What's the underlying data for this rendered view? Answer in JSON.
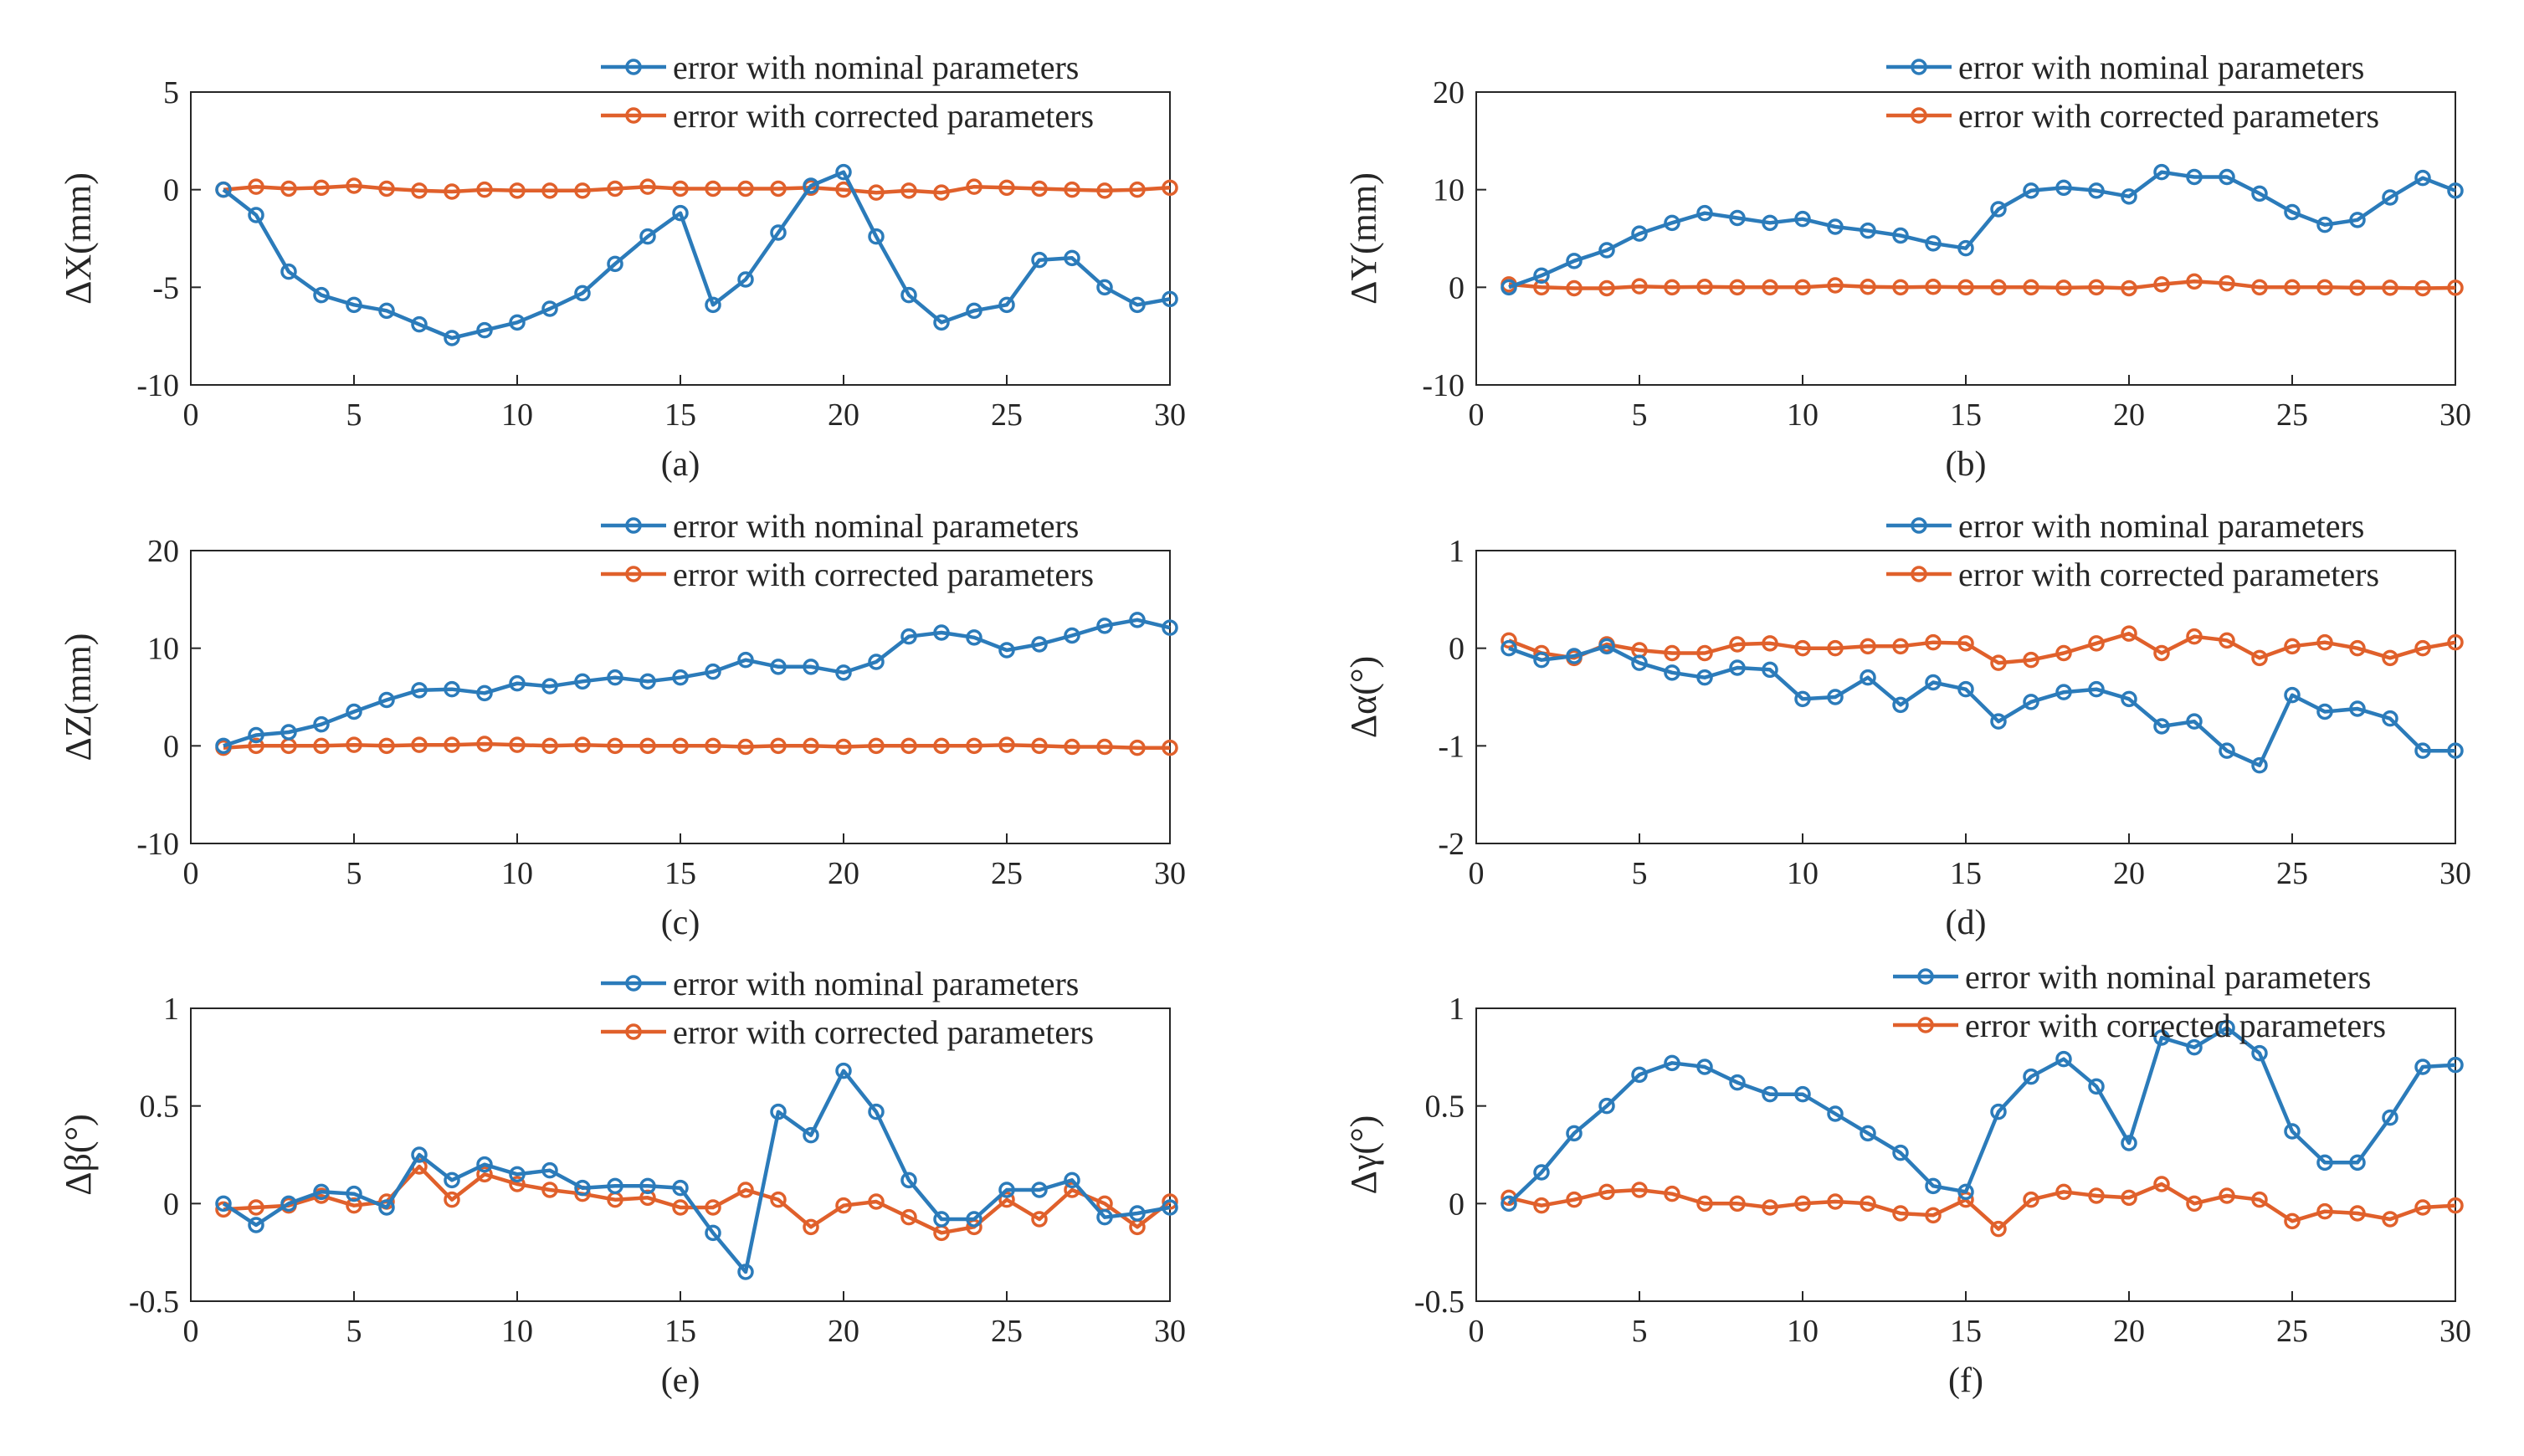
{
  "colors": {
    "nominal": "#2B7BBA",
    "corrected": "#E0602B",
    "axis": "#262626"
  },
  "chart_data": [
    {
      "type": "line",
      "panel": "(a)",
      "ylabel": "ΔX(mm)",
      "xlabel": "",
      "xlim": [
        0,
        30
      ],
      "ylim": [
        -10,
        5
      ],
      "xticks": [
        0,
        5,
        10,
        15,
        20,
        25,
        30
      ],
      "yticks": [
        -10,
        -5,
        0,
        5
      ],
      "ytick_labels": [
        "-10",
        "-5",
        "0",
        "5"
      ],
      "legend": "top-right",
      "x": [
        1,
        2,
        3,
        4,
        5,
        6,
        7,
        8,
        9,
        10,
        11,
        12,
        13,
        14,
        15,
        16,
        17,
        18,
        19,
        20,
        21,
        22,
        23,
        24,
        25,
        26,
        27,
        28,
        29,
        30
      ],
      "series": [
        {
          "name": "error with nominal parameters",
          "color": "nominal",
          "values": [
            0,
            -1.3,
            -4.2,
            -5.4,
            -5.9,
            -6.2,
            -6.9,
            -7.6,
            -7.2,
            -6.8,
            -6.1,
            -5.3,
            -3.8,
            -2.4,
            -1.2,
            -5.9,
            -4.6,
            -2.2,
            0.2,
            0.9,
            -2.4,
            -5.4,
            -6.8,
            -6.2,
            -5.9,
            -3.6,
            -3.5,
            -5.0,
            -5.9,
            -5.6
          ]
        },
        {
          "name": "error with corrected parameters",
          "color": "corrected",
          "values": [
            0,
            0.15,
            0.05,
            0.1,
            0.2,
            0.05,
            -0.05,
            -0.1,
            0.0,
            -0.05,
            -0.05,
            -0.05,
            0.05,
            0.15,
            0.05,
            0.05,
            0.05,
            0.05,
            0.1,
            0.0,
            -0.15,
            -0.05,
            -0.15,
            0.15,
            0.1,
            0.05,
            0.0,
            -0.05,
            0.0,
            0.1
          ]
        }
      ]
    },
    {
      "type": "line",
      "panel": "(b)",
      "ylabel": "ΔY(mm)",
      "xlabel": "",
      "xlim": [
        0,
        30
      ],
      "ylim": [
        -10,
        20
      ],
      "xticks": [
        0,
        5,
        10,
        15,
        20,
        25,
        30
      ],
      "yticks": [
        -10,
        0,
        10,
        20
      ],
      "ytick_labels": [
        "-10",
        "0",
        "10",
        "20"
      ],
      "legend": "top-right",
      "x": [
        1,
        2,
        3,
        4,
        5,
        6,
        7,
        8,
        9,
        10,
        11,
        12,
        13,
        14,
        15,
        16,
        17,
        18,
        19,
        20,
        21,
        22,
        23,
        24,
        25,
        26,
        27,
        28,
        29,
        30
      ],
      "series": [
        {
          "name": "error with nominal parameters",
          "color": "nominal",
          "values": [
            0,
            1.2,
            2.7,
            3.8,
            5.5,
            6.6,
            7.6,
            7.1,
            6.6,
            7.0,
            6.2,
            5.8,
            5.3,
            4.5,
            4.0,
            8.0,
            9.9,
            10.2,
            9.9,
            9.3,
            11.8,
            11.3,
            11.3,
            9.6,
            7.7,
            6.4,
            6.9,
            9.2,
            11.2,
            9.9
          ]
        },
        {
          "name": "error with corrected parameters",
          "color": "corrected",
          "values": [
            0.3,
            0.0,
            -0.1,
            -0.1,
            0.1,
            0.0,
            0.05,
            0.0,
            0.0,
            0.0,
            0.2,
            0.05,
            0.0,
            0.05,
            0.0,
            0.0,
            0.0,
            -0.05,
            0.0,
            -0.1,
            0.3,
            0.6,
            0.4,
            0.0,
            0.0,
            0.0,
            -0.05,
            -0.05,
            -0.1,
            -0.05
          ]
        }
      ]
    },
    {
      "type": "line",
      "panel": "(c)",
      "ylabel": "ΔZ(mm)",
      "xlabel": "",
      "xlim": [
        0,
        30
      ],
      "ylim": [
        -10,
        20
      ],
      "xticks": [
        0,
        5,
        10,
        15,
        20,
        25,
        30
      ],
      "yticks": [
        -10,
        0,
        10,
        20
      ],
      "ytick_labels": [
        "-10",
        "0",
        "10",
        "20"
      ],
      "legend": "top-right",
      "x": [
        1,
        2,
        3,
        4,
        5,
        6,
        7,
        8,
        9,
        10,
        11,
        12,
        13,
        14,
        15,
        16,
        17,
        18,
        19,
        20,
        21,
        22,
        23,
        24,
        25,
        26,
        27,
        28,
        29,
        30
      ],
      "series": [
        {
          "name": "error with nominal parameters",
          "color": "nominal",
          "values": [
            0,
            1.1,
            1.4,
            2.2,
            3.5,
            4.7,
            5.7,
            5.8,
            5.4,
            6.4,
            6.1,
            6.6,
            7.0,
            6.6,
            7.0,
            7.6,
            8.8,
            8.1,
            8.1,
            7.5,
            8.6,
            11.2,
            11.6,
            11.1,
            9.8,
            10.4,
            11.3,
            12.3,
            12.9,
            12.1
          ]
        },
        {
          "name": "error with corrected parameters",
          "color": "corrected",
          "values": [
            -0.2,
            0.0,
            0.0,
            0.0,
            0.1,
            0.0,
            0.1,
            0.1,
            0.2,
            0.1,
            0.0,
            0.1,
            0.0,
            0.0,
            0.0,
            0.0,
            -0.1,
            0.0,
            0.0,
            -0.1,
            0.0,
            0.0,
            0.0,
            0.0,
            0.1,
            0.0,
            -0.1,
            -0.1,
            -0.2,
            -0.2
          ]
        }
      ]
    },
    {
      "type": "line",
      "panel": "(d)",
      "ylabel": "Δα(°)",
      "xlabel": "",
      "xlim": [
        0,
        30
      ],
      "ylim": [
        -2,
        1
      ],
      "xticks": [
        0,
        5,
        10,
        15,
        20,
        25,
        30
      ],
      "yticks": [
        -2,
        -1,
        0,
        1
      ],
      "ytick_labels": [
        "-2",
        "-1",
        "0",
        "1"
      ],
      "legend": "top-right",
      "x": [
        1,
        2,
        3,
        4,
        5,
        6,
        7,
        8,
        9,
        10,
        11,
        12,
        13,
        14,
        15,
        16,
        17,
        18,
        19,
        20,
        21,
        22,
        23,
        24,
        25,
        26,
        27,
        28,
        29,
        30
      ],
      "series": [
        {
          "name": "error with nominal parameters",
          "color": "nominal",
          "values": [
            0,
            -0.12,
            -0.08,
            0.02,
            -0.15,
            -0.25,
            -0.3,
            -0.2,
            -0.22,
            -0.52,
            -0.5,
            -0.3,
            -0.58,
            -0.35,
            -0.42,
            -0.75,
            -0.55,
            -0.45,
            -0.42,
            -0.52,
            -0.8,
            -0.75,
            -1.05,
            -1.2,
            -0.48,
            -0.65,
            -0.62,
            -0.72,
            -1.05,
            -1.05
          ]
        },
        {
          "name": "error with corrected parameters",
          "color": "corrected",
          "values": [
            0.08,
            -0.05,
            -0.1,
            0.04,
            -0.02,
            -0.05,
            -0.05,
            0.04,
            0.05,
            0.0,
            0.0,
            0.02,
            0.02,
            0.06,
            0.05,
            -0.15,
            -0.12,
            -0.05,
            0.05,
            0.15,
            -0.05,
            0.12,
            0.08,
            -0.1,
            0.02,
            0.06,
            0.0,
            -0.1,
            0.0,
            0.06
          ]
        }
      ]
    },
    {
      "type": "line",
      "panel": "(e)",
      "ylabel": "Δβ(°)",
      "xlabel": "",
      "xlim": [
        0,
        30
      ],
      "ylim": [
        -0.5,
        1
      ],
      "xticks": [
        0,
        5,
        10,
        15,
        20,
        25,
        30
      ],
      "yticks": [
        -0.5,
        0,
        0.5,
        1
      ],
      "ytick_labels": [
        "-0.5",
        "0",
        "0.5",
        "1"
      ],
      "legend": "top-right",
      "x": [
        1,
        2,
        3,
        4,
        5,
        6,
        7,
        8,
        9,
        10,
        11,
        12,
        13,
        14,
        15,
        16,
        17,
        18,
        19,
        20,
        21,
        22,
        23,
        24,
        25,
        26,
        27,
        28,
        29,
        30
      ],
      "series": [
        {
          "name": "error with nominal parameters",
          "color": "nominal",
          "values": [
            0.0,
            -0.11,
            0.0,
            0.06,
            0.05,
            -0.02,
            0.25,
            0.12,
            0.2,
            0.15,
            0.17,
            0.08,
            0.09,
            0.09,
            0.08,
            -0.15,
            -0.35,
            0.47,
            0.35,
            0.68,
            0.47,
            0.12,
            -0.08,
            -0.08,
            0.07,
            0.07,
            0.12,
            -0.07,
            -0.05,
            -0.02
          ]
        },
        {
          "name": "error with corrected parameters",
          "color": "corrected",
          "values": [
            -0.03,
            -0.02,
            -0.01,
            0.04,
            -0.01,
            0.01,
            0.19,
            0.02,
            0.15,
            0.1,
            0.07,
            0.05,
            0.02,
            0.03,
            -0.02,
            -0.02,
            0.07,
            0.02,
            -0.12,
            -0.01,
            0.01,
            -0.07,
            -0.15,
            -0.12,
            0.02,
            -0.08,
            0.07,
            0.0,
            -0.12,
            0.01
          ]
        }
      ]
    },
    {
      "type": "line",
      "panel": "(f)",
      "ylabel": "Δγ(°)",
      "xlabel": "",
      "xlim": [
        0,
        30
      ],
      "ylim": [
        -0.5,
        1
      ],
      "xticks": [
        0,
        5,
        10,
        15,
        20,
        25,
        30
      ],
      "yticks": [
        -0.5,
        0,
        0.5,
        1
      ],
      "ytick_labels": [
        "-0.5",
        "0",
        "0.5",
        "1"
      ],
      "legend": "top-right",
      "x": [
        1,
        2,
        3,
        4,
        5,
        6,
        7,
        8,
        9,
        10,
        11,
        12,
        13,
        14,
        15,
        16,
        17,
        18,
        19,
        20,
        21,
        22,
        23,
        24,
        25,
        26,
        27,
        28,
        29,
        30
      ],
      "series": [
        {
          "name": "error with nominal parameters",
          "color": "nominal",
          "values": [
            0.0,
            0.16,
            0.36,
            0.5,
            0.66,
            0.72,
            0.7,
            0.62,
            0.56,
            0.56,
            0.46,
            0.36,
            0.26,
            0.09,
            0.06,
            0.47,
            0.65,
            0.74,
            0.6,
            0.31,
            0.85,
            0.8,
            0.9,
            0.77,
            0.37,
            0.21,
            0.21,
            0.44,
            0.7,
            0.71
          ]
        },
        {
          "name": "error with corrected parameters",
          "color": "corrected",
          "values": [
            0.03,
            -0.01,
            0.02,
            0.06,
            0.07,
            0.05,
            0.0,
            0.0,
            -0.02,
            0.0,
            0.01,
            0.0,
            -0.05,
            -0.06,
            0.02,
            -0.13,
            0.02,
            0.06,
            0.04,
            0.03,
            0.1,
            0.0,
            0.04,
            0.02,
            -0.09,
            -0.04,
            -0.05,
            -0.08,
            -0.02,
            -0.01
          ]
        }
      ]
    }
  ]
}
